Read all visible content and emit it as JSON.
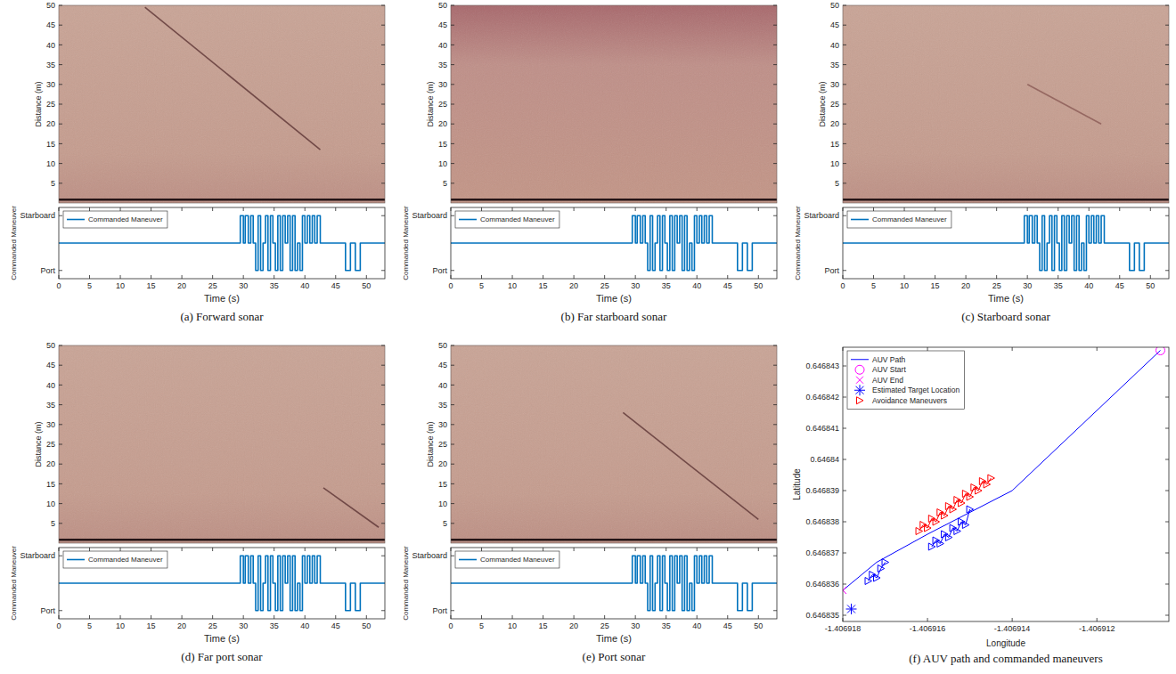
{
  "chart_data": [
    {
      "type": "line",
      "ylabel": "Distance (m)",
      "xlim": [
        0,
        53
      ],
      "ylim": [
        0,
        50
      ],
      "yticks": [
        5,
        10,
        15,
        20,
        25,
        30,
        35,
        40,
        45,
        50
      ],
      "tick_labels": "y",
      "series": [
        {
          "color": "#5c3434",
          "x": [
            14,
            42.5
          ],
          "values": [
            49.5,
            13.5
          ]
        }
      ]
    },
    {
      "type": "line",
      "caption": "(a) Forward sonar",
      "xlabel": "Time (s)",
      "ylabel": "Commanded Maneuver",
      "xlim": [
        0,
        53
      ],
      "ylim": [
        -1.3,
        1.3
      ],
      "xticks": [
        0,
        5,
        10,
        15,
        20,
        25,
        30,
        35,
        40,
        45,
        50
      ],
      "yticks": [
        {
          "value": -1,
          "label": "Port"
        },
        {
          "value": 1,
          "label": "Starboard"
        }
      ],
      "legend": "upper left",
      "series": [
        {
          "name": "Commanded Maneuver",
          "color": "#0072bd",
          "line_style": "step",
          "x": [
            0,
            29.5,
            30,
            30.3,
            30.8,
            31.2,
            31.6,
            32,
            32.4,
            32.8,
            33.2,
            33.6,
            34,
            34.4,
            34.8,
            35.2,
            35.6,
            36,
            36.4,
            36.8,
            37.2,
            37.6,
            38,
            38.4,
            38.8,
            39.2,
            39.6,
            40,
            40.4,
            40.8,
            41.2,
            41.6,
            42,
            42.5,
            46.6,
            47.4,
            48.2,
            49,
            53
          ],
          "values": [
            0,
            1,
            0,
            1,
            0,
            1,
            0,
            -1,
            1,
            -1,
            0,
            1,
            -1,
            1,
            0,
            -1,
            1,
            -1,
            1,
            0,
            1,
            -1,
            1,
            -1,
            0,
            -1,
            1,
            0,
            1,
            0,
            1,
            0,
            1,
            0,
            -1,
            0,
            -1,
            0,
            0
          ]
        }
      ]
    },
    {
      "type": "line",
      "ylabel": "Distance (m)",
      "xlim": [
        0,
        53
      ],
      "ylim": [
        0,
        50
      ],
      "yticks": [
        5,
        10,
        15,
        20,
        25,
        30,
        35,
        40,
        45,
        50
      ],
      "tick_labels": "y",
      "series": []
    },
    {
      "type": "line",
      "caption": "(b) Far starboard sonar",
      "xlabel": "Time (s)",
      "ylabel": "Commanded Maneuver",
      "xlim": [
        0,
        53
      ],
      "ylim": [
        -1.3,
        1.3
      ],
      "xticks": [
        0,
        5,
        10,
        15,
        20,
        25,
        30,
        35,
        40,
        45,
        50
      ],
      "yticks": [
        {
          "value": -1,
          "label": "Port"
        },
        {
          "value": 1,
          "label": "Starboard"
        }
      ],
      "legend": "upper left",
      "series": [
        {
          "name": "Commanded Maneuver",
          "color": "#0072bd",
          "line_style": "step",
          "x": [
            0,
            29.5,
            30,
            30.3,
            30.8,
            31.2,
            31.6,
            32,
            32.4,
            32.8,
            33.2,
            33.6,
            34,
            34.4,
            34.8,
            35.2,
            35.6,
            36,
            36.4,
            36.8,
            37.2,
            37.6,
            38,
            38.4,
            38.8,
            39.2,
            39.6,
            40,
            40.4,
            40.8,
            41.2,
            41.6,
            42,
            42.5,
            46.6,
            47.4,
            48.2,
            49,
            53
          ],
          "values": [
            0,
            1,
            0,
            1,
            0,
            1,
            0,
            -1,
            1,
            -1,
            0,
            1,
            -1,
            1,
            0,
            -1,
            1,
            -1,
            1,
            0,
            1,
            -1,
            1,
            -1,
            0,
            -1,
            1,
            0,
            1,
            0,
            1,
            0,
            1,
            0,
            -1,
            0,
            -1,
            0,
            0
          ]
        }
      ]
    },
    {
      "type": "line",
      "ylabel": "Distance (m)",
      "xlim": [
        0,
        53
      ],
      "ylim": [
        0,
        50
      ],
      "yticks": [
        5,
        10,
        15,
        20,
        25,
        30,
        35,
        40,
        45,
        50
      ],
      "tick_labels": "y",
      "series": [
        {
          "color": "#8a5a55",
          "x": [
            30,
            42
          ],
          "values": [
            30,
            20
          ]
        }
      ]
    },
    {
      "type": "line",
      "caption": "(c) Starboard sonar",
      "xlabel": "Time (s)",
      "ylabel": "Commanded Maneuver",
      "xlim": [
        0,
        53
      ],
      "ylim": [
        -1.3,
        1.3
      ],
      "xticks": [
        0,
        5,
        10,
        15,
        20,
        25,
        30,
        35,
        40,
        45,
        50
      ],
      "yticks": [
        {
          "value": -1,
          "label": "Port"
        },
        {
          "value": 1,
          "label": "Starboard"
        }
      ],
      "legend": "upper left",
      "series": [
        {
          "name": "Commanded Maneuver",
          "color": "#0072bd",
          "line_style": "step",
          "x": [
            0,
            29.5,
            30,
            30.3,
            30.8,
            31.2,
            31.6,
            32,
            32.4,
            32.8,
            33.2,
            33.6,
            34,
            34.4,
            34.8,
            35.2,
            35.6,
            36,
            36.4,
            36.8,
            37.2,
            37.6,
            38,
            38.4,
            38.8,
            39.2,
            39.6,
            40,
            40.4,
            40.8,
            41.2,
            41.6,
            42,
            42.5,
            46.6,
            47.4,
            48.2,
            49,
            53
          ],
          "values": [
            0,
            1,
            0,
            1,
            0,
            1,
            0,
            -1,
            1,
            -1,
            0,
            1,
            -1,
            1,
            0,
            -1,
            1,
            -1,
            1,
            0,
            1,
            -1,
            1,
            -1,
            0,
            -1,
            1,
            0,
            1,
            0,
            1,
            0,
            1,
            0,
            -1,
            0,
            -1,
            0,
            0
          ]
        }
      ]
    },
    {
      "type": "line",
      "ylabel": "Distance (m)",
      "xlim": [
        0,
        53
      ],
      "ylim": [
        0,
        50
      ],
      "yticks": [
        5,
        10,
        15,
        20,
        25,
        30,
        35,
        40,
        45,
        50
      ],
      "tick_labels": "y",
      "series": [
        {
          "color": "#5c3434",
          "x": [
            43,
            52
          ],
          "values": [
            14,
            4
          ]
        }
      ]
    },
    {
      "type": "line",
      "caption": "(d) Far port sonar",
      "xlabel": "Time (s)",
      "ylabel": "Commanded Maneuver",
      "xlim": [
        0,
        53
      ],
      "ylim": [
        -1.3,
        1.3
      ],
      "xticks": [
        0,
        5,
        10,
        15,
        20,
        25,
        30,
        35,
        40,
        45,
        50
      ],
      "yticks": [
        {
          "value": -1,
          "label": "Port"
        },
        {
          "value": 1,
          "label": "Starboard"
        }
      ],
      "legend": "upper left",
      "series": [
        {
          "name": "Commanded Maneuver",
          "color": "#0072bd",
          "line_style": "step",
          "x": [
            0,
            29.5,
            30,
            30.3,
            30.8,
            31.2,
            31.6,
            32,
            32.4,
            32.8,
            33.2,
            33.6,
            34,
            34.4,
            34.8,
            35.2,
            35.6,
            36,
            36.4,
            36.8,
            37.2,
            37.6,
            38,
            38.4,
            38.8,
            39.2,
            39.6,
            40,
            40.4,
            40.8,
            41.2,
            41.6,
            42,
            42.5,
            46.6,
            47.4,
            48.2,
            49,
            53
          ],
          "values": [
            0,
            1,
            0,
            1,
            0,
            1,
            0,
            -1,
            1,
            -1,
            0,
            1,
            -1,
            1,
            0,
            -1,
            1,
            -1,
            1,
            0,
            1,
            -1,
            1,
            -1,
            0,
            -1,
            1,
            0,
            1,
            0,
            1,
            0,
            1,
            0,
            -1,
            0,
            -1,
            0,
            0
          ]
        }
      ]
    },
    {
      "type": "line",
      "ylabel": "Distance (m)",
      "xlim": [
        0,
        53
      ],
      "ylim": [
        0,
        50
      ],
      "yticks": [
        5,
        10,
        15,
        20,
        25,
        30,
        35,
        40,
        45,
        50
      ],
      "tick_labels": "y",
      "series": [
        {
          "color": "#5c3434",
          "x": [
            28,
            50
          ],
          "values": [
            33,
            6
          ]
        }
      ]
    },
    {
      "type": "line",
      "caption": "(e) Port sonar",
      "xlabel": "Time (s)",
      "ylabel": "Commanded Maneuver",
      "xlim": [
        0,
        53
      ],
      "ylim": [
        -1.3,
        1.3
      ],
      "xticks": [
        0,
        5,
        10,
        15,
        20,
        25,
        30,
        35,
        40,
        45,
        50
      ],
      "yticks": [
        {
          "value": -1,
          "label": "Port"
        },
        {
          "value": 1,
          "label": "Starboard"
        }
      ],
      "legend": "upper left",
      "series": [
        {
          "name": "Commanded Maneuver",
          "color": "#0072bd",
          "line_style": "step",
          "x": [
            0,
            29.5,
            30,
            30.3,
            30.8,
            31.2,
            31.6,
            32,
            32.4,
            32.8,
            33.2,
            33.6,
            34,
            34.4,
            34.8,
            35.2,
            35.6,
            36,
            36.4,
            36.8,
            37.2,
            37.6,
            38,
            38.4,
            38.8,
            39.2,
            39.6,
            40,
            40.4,
            40.8,
            41.2,
            41.6,
            42,
            42.5,
            46.6,
            47.4,
            48.2,
            49,
            53
          ],
          "values": [
            0,
            1,
            0,
            1,
            0,
            1,
            0,
            -1,
            1,
            -1,
            0,
            1,
            -1,
            1,
            0,
            -1,
            1,
            -1,
            1,
            0,
            1,
            -1,
            1,
            -1,
            0,
            -1,
            1,
            0,
            1,
            0,
            1,
            0,
            1,
            0,
            -1,
            0,
            -1,
            0,
            0
          ]
        }
      ]
    },
    {
      "type": "scatter",
      "caption": "(f) AUV path and commanded maneuvers",
      "xlabel": "Longitude",
      "ylabel": "Latitude",
      "xlim": [
        -1.406918,
        -1.4069103
      ],
      "ylim": [
        0.6468348,
        0.6468436
      ],
      "xticks": [
        -1.406918,
        -1.406916,
        -1.406914,
        -1.406912
      ],
      "yticks": [
        0.646835,
        0.646836,
        0.646837,
        0.646838,
        0.646839,
        0.64684,
        0.646841,
        0.646842,
        0.646843
      ],
      "legend": "upper left",
      "series": [
        {
          "name": "AUV Path",
          "color": "#0000ff",
          "line_style": "solid",
          "x": [
            -1.4069105,
            -1.406914,
            -1.406916,
            -1.4069172,
            -1.406918
          ],
          "values": [
            0.6468435,
            0.646839,
            0.6468376,
            0.6468367,
            0.6468358
          ]
        },
        {
          "name": "AUV Start",
          "color": "#ff00ff",
          "marker": "circle",
          "line_style": "none",
          "x": [
            -1.4069105
          ],
          "values": [
            0.6468435
          ]
        },
        {
          "name": "AUV End",
          "color": "#ff00ff",
          "marker": "x",
          "line_style": "none",
          "x": [
            -1.406918
          ],
          "values": [
            0.6468358
          ]
        },
        {
          "name": "Estimated Target Location",
          "color": "#0000ff",
          "marker": "asterisk",
          "line_style": "none",
          "x": [
            -1.4069178
          ],
          "values": [
            0.6468352
          ]
        },
        {
          "name": "Avoidance Maneuvers",
          "color": "#ff0000",
          "marker": "triangle",
          "line_style": "solid",
          "x": [
            -1.4069162,
            -1.4069161,
            -1.406916,
            -1.4069159,
            -1.4069158,
            -1.4069157,
            -1.4069156,
            -1.4069155,
            -1.4069154,
            -1.4069153,
            -1.4069152,
            -1.4069151,
            -1.406915,
            -1.4069149,
            -1.4069148,
            -1.4069147,
            -1.4069146,
            -1.4069145
          ],
          "values": [
            0.6468377,
            0.6468379,
            0.6468378,
            0.6468381,
            0.646838,
            0.6468383,
            0.6468382,
            0.6468385,
            0.6468384,
            0.6468387,
            0.6468386,
            0.6468389,
            0.6468388,
            0.6468391,
            0.646839,
            0.6468393,
            0.6468392,
            0.6468394
          ]
        },
        {
          "color": "#0000ff",
          "marker": "triangle",
          "line_style": "solid",
          "x": [
            -1.4069174,
            -1.4069173,
            -1.4069172,
            -1.4069171,
            -1.406917
          ],
          "values": [
            0.6468361,
            0.6468363,
            0.6468362,
            0.6468365,
            0.6468367
          ]
        },
        {
          "color": "#0000ff",
          "marker": "triangle",
          "line_style": "solid",
          "x": [
            -1.4069159,
            -1.4069158,
            -1.4069157,
            -1.4069156,
            -1.4069155,
            -1.4069154,
            -1.4069153,
            -1.4069152,
            -1.4069151,
            -1.406915
          ],
          "values": [
            0.6468372,
            0.6468374,
            0.6468373,
            0.6468376,
            0.6468375,
            0.6468378,
            0.6468377,
            0.646838,
            0.6468379,
            0.6468384
          ]
        }
      ]
    }
  ]
}
